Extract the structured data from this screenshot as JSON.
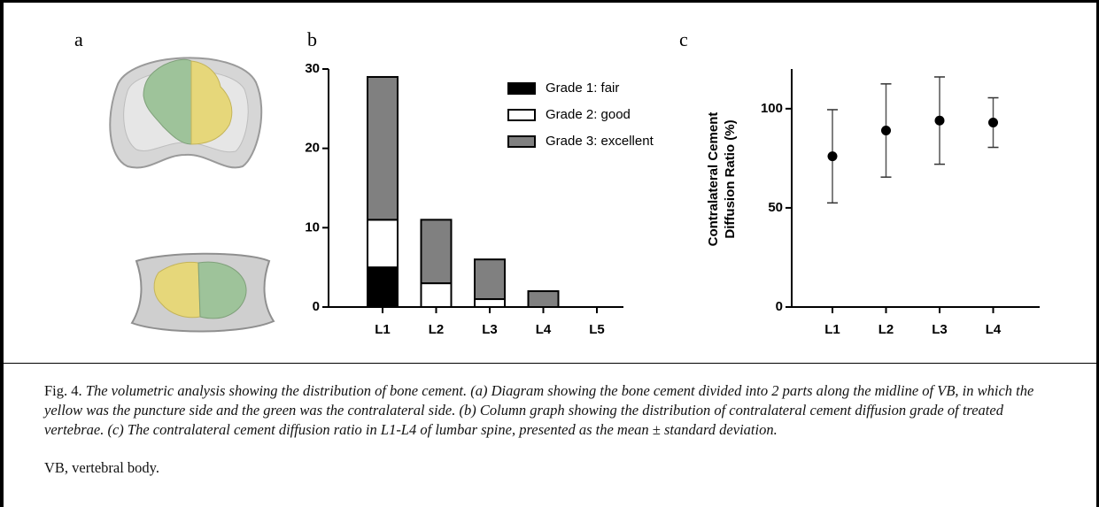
{
  "panel_labels": [
    "a",
    "b",
    "c"
  ],
  "chart_data": [
    {
      "type": "bar",
      "stacked": true,
      "categories": [
        "L1",
        "L2",
        "L3",
        "L4",
        "L5"
      ],
      "series": [
        {
          "name": "Grade 1: fair",
          "color": "#000000",
          "values": [
            5,
            0,
            0,
            0,
            0
          ]
        },
        {
          "name": "Grade 2: good",
          "color": "#ffffff",
          "values": [
            6,
            3,
            1,
            0,
            0
          ]
        },
        {
          "name": "Grade 3: excellent",
          "color": "#808080",
          "values": [
            18,
            8,
            5,
            2,
            0
          ]
        }
      ],
      "ylim": [
        0,
        30
      ],
      "yticks": [
        0,
        10,
        20,
        30
      ],
      "legend": "top-right"
    },
    {
      "type": "scatter",
      "y_label": [
        "Contralateral Cement",
        "Diffusion Ratio (%)"
      ],
      "categories": [
        "L1",
        "L2",
        "L3",
        "L4"
      ],
      "values": [
        76,
        89,
        94,
        93
      ],
      "errors": [
        23.5,
        23.5,
        22,
        12.5
      ],
      "color": "#000000",
      "ylim": [
        0,
        120
      ],
      "yticks": [
        0,
        50,
        100
      ]
    }
  ],
  "caption": {
    "label": "Fig. 4.",
    "text": "The volumetric analysis showing the distribution of bone cement. (a) Diagram showing the bone cement divided into 2 parts along the midline of VB, in which the yellow was the puncture side and the green was the contralateral side. (b) Column graph showing the distribution of contralateral cement diffusion grade of treated vertebrae. (c) The contralateral cement diffusion ratio in L1-L4 of lumbar spine, presented as the mean ± standard deviation.",
    "note": "VB, vertebral body."
  }
}
